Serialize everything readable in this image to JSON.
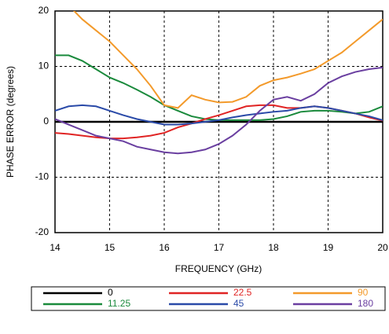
{
  "chart_data": {
    "type": "line",
    "x_label": "FREQUENCY (GHz)",
    "y_label": "PHASE ERROR  (degrees)",
    "x": [
      14,
      14.25,
      14.5,
      14.75,
      15,
      15.25,
      15.5,
      15.75,
      16,
      16.25,
      16.5,
      16.75,
      17,
      17.25,
      17.5,
      17.75,
      18,
      18.25,
      18.5,
      18.75,
      19,
      19.25,
      19.5,
      19.75,
      20
    ],
    "xlim": [
      14,
      20
    ],
    "xticks": [
      14,
      15,
      16,
      17,
      18,
      19,
      20
    ],
    "ylim": [
      -20,
      20
    ],
    "yticks": [
      -20,
      -10,
      0,
      10,
      20
    ],
    "grid": true,
    "series": [
      {
        "name": "0",
        "color": "#000000",
        "values": [
          0,
          0,
          0,
          0,
          0,
          0,
          0,
          0,
          0,
          0,
          0,
          0,
          0,
          0,
          0,
          0,
          0,
          0,
          0,
          0,
          0,
          0,
          0,
          0,
          0
        ]
      },
      {
        "name": "11.25",
        "color": "#1a8a3c",
        "values": [
          12,
          12,
          11,
          9.5,
          8,
          7,
          5.8,
          4.5,
          3,
          2,
          1,
          0.5,
          0.3,
          0.3,
          0.3,
          0.3,
          0.5,
          1,
          1.8,
          2,
          2,
          1.8,
          1.5,
          1.8,
          2.8
        ]
      },
      {
        "name": "22.5",
        "color": "#e02424",
        "values": [
          -2,
          -2.2,
          -2.5,
          -2.8,
          -3,
          -3,
          -2.8,
          -2.5,
          -2,
          -1,
          -0.3,
          0.5,
          1.2,
          2,
          2.8,
          3,
          3,
          2.5,
          2.5,
          2.8,
          2.5,
          2,
          1.5,
          0.8,
          0.2
        ]
      },
      {
        "name": "45",
        "color": "#2a4aa8",
        "values": [
          2,
          2.8,
          3,
          2.8,
          2,
          1.2,
          0.5,
          0,
          -0.5,
          -0.5,
          -0.3,
          0,
          0.3,
          0.8,
          1.2,
          1.5,
          1.8,
          2,
          2.5,
          2.8,
          2.5,
          2,
          1.5,
          1,
          0.3
        ]
      },
      {
        "name": "90",
        "color": "#f39a2b",
        "values": [
          null,
          21,
          18.5,
          16.5,
          14.5,
          12,
          9.5,
          6.5,
          3,
          2.5,
          4.8,
          4,
          3.5,
          3.6,
          4.5,
          6.5,
          7.5,
          8,
          8.7,
          9.5,
          11,
          12.5,
          14.5,
          16.5,
          18.5
        ]
      },
      {
        "name": "180",
        "color": "#6a3fa0",
        "values": [
          0.5,
          -0.5,
          -1.5,
          -2.5,
          -3,
          -3.5,
          -4.5,
          -5,
          -5.5,
          -5.7,
          -5.5,
          -5,
          -4,
          -2.5,
          -0.5,
          2,
          4,
          4.5,
          3.8,
          5,
          7,
          8.2,
          9,
          9.5,
          9.8
        ]
      }
    ]
  }
}
